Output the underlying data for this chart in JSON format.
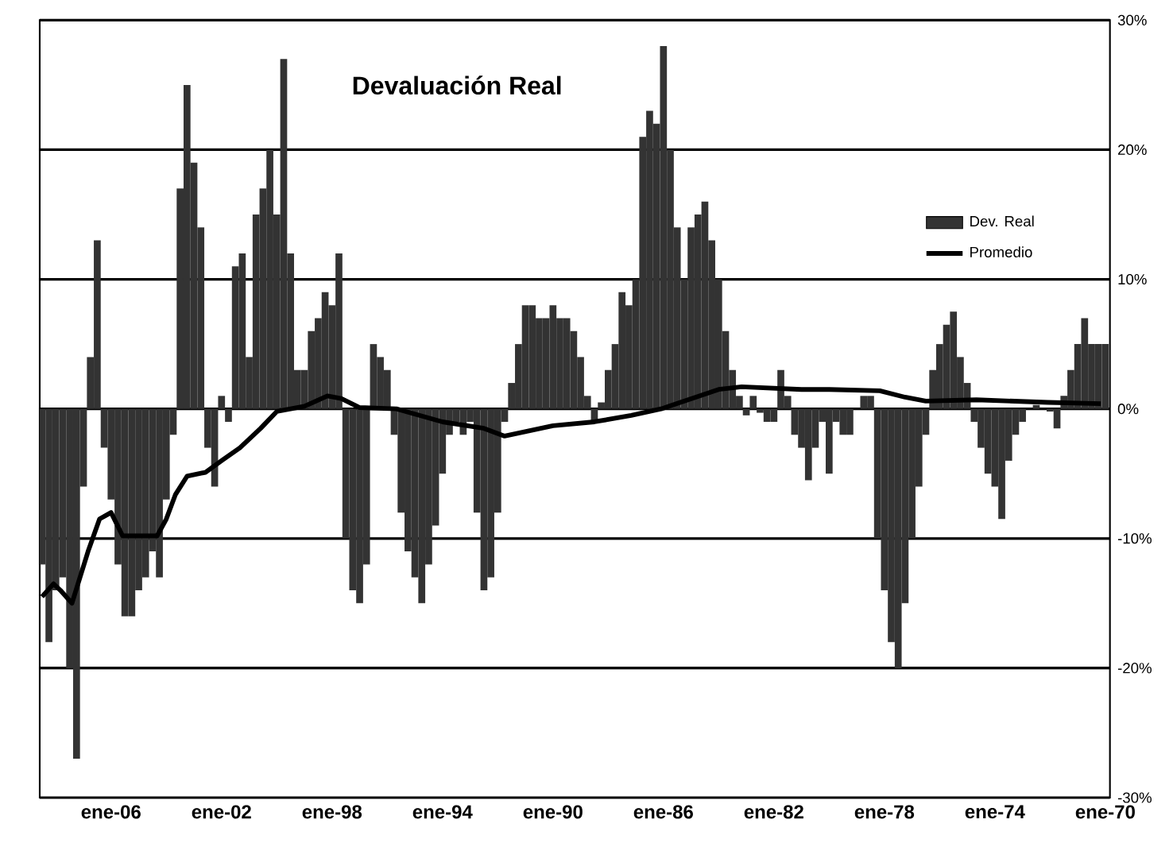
{
  "chart_data": {
    "type": "bar",
    "title": "Devaluación Real",
    "x": [
      "2008-07",
      "2008-04",
      "2008-01",
      "2007-10",
      "2007-07",
      "2007-04",
      "2007-01",
      "2006-10",
      "2006-07",
      "2006-04",
      "2006-01",
      "2005-10",
      "2005-07",
      "2005-04",
      "2005-01",
      "2004-10",
      "2004-07",
      "2004-04",
      "2004-01",
      "2003-10",
      "2003-07",
      "2003-04",
      "2003-01",
      "2002-10",
      "2002-07",
      "2002-04",
      "2002-01",
      "2001-10",
      "2001-07",
      "2001-04",
      "2001-01",
      "2000-10",
      "2000-07",
      "2000-04",
      "2000-01",
      "1999-10",
      "1999-07",
      "1999-04",
      "1999-01",
      "1998-10",
      "1998-07",
      "1998-04",
      "1998-01",
      "1997-10",
      "1997-07",
      "1997-04",
      "1997-01",
      "1996-10",
      "1996-07",
      "1996-04",
      "1996-01",
      "1995-10",
      "1995-07",
      "1995-04",
      "1995-01",
      "1994-10",
      "1994-07",
      "1994-04",
      "1994-01",
      "1993-10",
      "1993-07",
      "1993-04",
      "1993-01",
      "1992-10",
      "1992-07",
      "1992-04",
      "1992-01",
      "1991-10",
      "1991-07",
      "1991-04",
      "1991-01",
      "1990-10",
      "1990-07",
      "1990-04",
      "1990-01",
      "1989-10",
      "1989-07",
      "1989-04",
      "1989-01",
      "1988-10",
      "1988-07",
      "1988-04",
      "1988-01",
      "1987-10",
      "1987-07",
      "1987-04",
      "1987-01",
      "1986-10",
      "1986-07",
      "1986-04",
      "1986-01",
      "1985-10",
      "1985-07",
      "1985-04",
      "1985-01",
      "1984-10",
      "1984-07",
      "1984-04",
      "1984-01",
      "1983-10",
      "1983-07",
      "1983-04",
      "1983-01",
      "1982-10",
      "1982-07",
      "1982-04",
      "1982-01",
      "1981-10",
      "1981-07",
      "1981-04",
      "1981-01",
      "1980-10",
      "1980-07",
      "1980-04",
      "1980-01",
      "1979-10",
      "1979-07",
      "1979-04",
      "1979-01",
      "1978-10",
      "1978-07",
      "1978-04",
      "1978-01",
      "1977-10",
      "1977-07",
      "1977-04",
      "1977-01",
      "1976-10",
      "1976-07",
      "1976-04",
      "1976-01",
      "1975-10",
      "1975-07",
      "1975-04",
      "1975-01",
      "1974-10",
      "1974-07",
      "1974-04",
      "1974-01",
      "1973-10",
      "1973-07",
      "1973-04",
      "1973-01",
      "1972-10",
      "1972-07",
      "1972-04",
      "1972-01",
      "1971-10",
      "1971-07",
      "1971-04",
      "1971-01",
      "1970-10",
      "1970-07",
      "1970-04",
      "1970-01"
    ],
    "series": [
      {
        "name": "Dev. Real",
        "color": "#333333",
        "values": [
          -12,
          -18,
          -14,
          -13,
          -20,
          -27,
          -6,
          4,
          13,
          -3,
          -7,
          -12,
          -16,
          -16,
          -14,
          -13,
          -11,
          -13,
          -7,
          -2,
          17,
          25,
          19,
          14,
          -3,
          -6,
          1,
          -1,
          11,
          12,
          4,
          15,
          17,
          20,
          15,
          27,
          12,
          3,
          3,
          6,
          7,
          9,
          8,
          12,
          -10,
          -14,
          -15,
          -12,
          5,
          4,
          3,
          -2,
          -8,
          -11,
          -13,
          -15,
          -12,
          -9,
          -5,
          -2,
          -1,
          -2,
          -1,
          -8,
          -14,
          -13,
          -8,
          -1,
          2,
          5,
          8,
          8,
          7,
          7,
          8,
          7,
          7,
          6,
          4,
          1,
          -1,
          0.5,
          3,
          5,
          9,
          8,
          10,
          21,
          23,
          22,
          28,
          20,
          14,
          10,
          14,
          15,
          16,
          13,
          10,
          6,
          3,
          1,
          -0.5,
          1,
          -0.3,
          -1,
          -1,
          3,
          1,
          -2,
          -3,
          -5.5,
          -3,
          -1,
          -5,
          -1,
          -2,
          -2,
          0,
          1,
          1,
          -10,
          -14,
          -18,
          -20,
          -15,
          -10,
          -6,
          -2,
          3,
          5,
          6.5,
          7.5,
          4,
          2,
          -1,
          -3,
          -5,
          -6,
          -8.5,
          -4,
          -2,
          -1,
          0,
          0.3,
          0,
          -0.2,
          -1.5,
          1,
          3,
          5,
          7,
          5,
          5,
          5
        ]
      },
      {
        "name": "Promedio",
        "type": "line",
        "color": "#000000",
        "x": [
          "2008-07",
          "2008-02",
          "2007-11",
          "2007-06",
          "2006-11",
          "2006-06",
          "2006-01",
          "2005-08",
          "2004-05",
          "2004-01",
          "2003-09",
          "2003-04",
          "2002-08",
          "2002-01",
          "2001-05",
          "2000-08",
          "2000-01",
          "1999-01",
          "1998-03",
          "1997-09",
          "1997-01",
          "1995-09",
          "1994-01",
          "1992-07",
          "1991-10",
          "1990-01",
          "1988-07",
          "1987-03",
          "1986-02",
          "1984-01",
          "1983-03",
          "1981-01",
          "1980-01",
          "1978-03",
          "1977-04",
          "1976-07",
          "1974-09",
          "1972-02",
          "1970-03"
        ],
        "values": [
          -14.5,
          -13.5,
          -14,
          -15,
          -11,
          -8.5,
          -8,
          -9.8,
          -9.8,
          -8.5,
          -6.6,
          -5.2,
          -4.9,
          -4,
          -3,
          -1.5,
          -0.2,
          0.2,
          1,
          0.8,
          0.1,
          0,
          -1,
          -1.5,
          -2.1,
          -1.3,
          -1,
          -0.5,
          0,
          1.5,
          1.7,
          1.5,
          1.5,
          1.4,
          0.9,
          0.6,
          0.7,
          0.5,
          0.4
        ]
      }
    ],
    "xlim": [
      "2008-08",
      "1969-11"
    ],
    "xticks": [
      {
        "value": "2006-01",
        "label": "ene-06"
      },
      {
        "value": "2002-01",
        "label": "ene-02"
      },
      {
        "value": "1998-01",
        "label": "ene-98"
      },
      {
        "value": "1994-01",
        "label": "ene-94"
      },
      {
        "value": "1990-01",
        "label": "ene-90"
      },
      {
        "value": "1986-01",
        "label": "ene-86"
      },
      {
        "value": "1982-01",
        "label": "ene-82"
      },
      {
        "value": "1978-01",
        "label": "ene-78"
      },
      {
        "value": "1974-01",
        "label": "ene-74"
      },
      {
        "value": "1970-01",
        "label": "ene-70"
      }
    ],
    "ylim": [
      -30,
      30
    ],
    "yticks": [
      {
        "value": -30,
        "label": "-30%"
      },
      {
        "value": -20,
        "label": "-20%"
      },
      {
        "value": -10,
        "label": "-10%"
      },
      {
        "value": 0,
        "label": "0%"
      },
      {
        "value": 10,
        "label": "10%"
      },
      {
        "value": 20,
        "label": "20%"
      },
      {
        "value": 30,
        "label": "30%"
      }
    ],
    "grid": "y",
    "legend": "top right"
  }
}
